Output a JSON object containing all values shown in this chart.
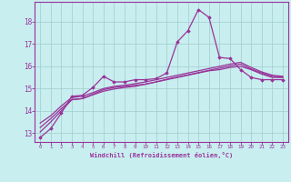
{
  "title": "",
  "xlabel": "Windchill (Refroidissement éolien,°C)",
  "bg_color": "#c8eef0",
  "grid_color": "#a0cccc",
  "line_color": "#993399",
  "x_ticks": [
    0,
    1,
    2,
    3,
    4,
    5,
    6,
    7,
    8,
    9,
    10,
    11,
    12,
    13,
    14,
    15,
    16,
    17,
    18,
    19,
    20,
    21,
    22,
    23
  ],
  "y_ticks": [
    13,
    14,
    15,
    16,
    17,
    18
  ],
  "xlim": [
    -0.5,
    23.5
  ],
  "ylim": [
    12.6,
    18.9
  ],
  "series1_x": [
    0,
    1,
    2,
    3,
    4,
    5,
    6,
    7,
    8,
    9,
    10,
    11,
    12,
    13,
    14,
    15,
    16,
    17,
    18,
    19,
    20,
    21,
    22,
    23
  ],
  "series1_y": [
    12.8,
    13.2,
    13.9,
    14.65,
    14.7,
    15.05,
    15.55,
    15.3,
    15.3,
    15.4,
    15.4,
    15.45,
    15.7,
    17.1,
    17.6,
    18.55,
    18.2,
    16.4,
    16.35,
    15.85,
    15.5,
    15.4,
    15.4,
    15.4
  ],
  "series2_x": [
    0,
    1,
    2,
    3,
    4,
    5,
    6,
    7,
    8,
    9,
    10,
    11,
    12,
    13,
    14,
    15,
    16,
    17,
    18,
    19,
    20,
    21,
    22,
    23
  ],
  "series2_y": [
    13.05,
    13.5,
    14.0,
    14.5,
    14.55,
    14.75,
    14.95,
    15.05,
    15.1,
    15.15,
    15.2,
    15.3,
    15.4,
    15.5,
    15.6,
    15.7,
    15.8,
    15.85,
    15.95,
    16.0,
    15.85,
    15.65,
    15.5,
    15.5
  ],
  "series3_x": [
    0,
    1,
    2,
    3,
    4,
    5,
    6,
    7,
    8,
    9,
    10,
    11,
    12,
    13,
    14,
    15,
    16,
    17,
    18,
    19,
    20,
    21,
    22,
    23
  ],
  "series3_y": [
    13.25,
    13.65,
    14.1,
    14.5,
    14.55,
    14.72,
    14.88,
    14.98,
    15.05,
    15.1,
    15.2,
    15.3,
    15.42,
    15.52,
    15.62,
    15.72,
    15.82,
    15.92,
    16.02,
    16.1,
    15.88,
    15.7,
    15.55,
    15.52
  ],
  "series4_x": [
    0,
    1,
    2,
    3,
    4,
    5,
    6,
    7,
    8,
    9,
    10,
    11,
    12,
    13,
    14,
    15,
    16,
    17,
    18,
    19,
    20,
    21,
    22,
    23
  ],
  "series4_y": [
    13.45,
    13.78,
    14.22,
    14.6,
    14.65,
    14.82,
    15.0,
    15.1,
    15.15,
    15.22,
    15.3,
    15.4,
    15.5,
    15.6,
    15.7,
    15.8,
    15.9,
    16.0,
    16.1,
    16.18,
    15.95,
    15.75,
    15.6,
    15.55
  ]
}
